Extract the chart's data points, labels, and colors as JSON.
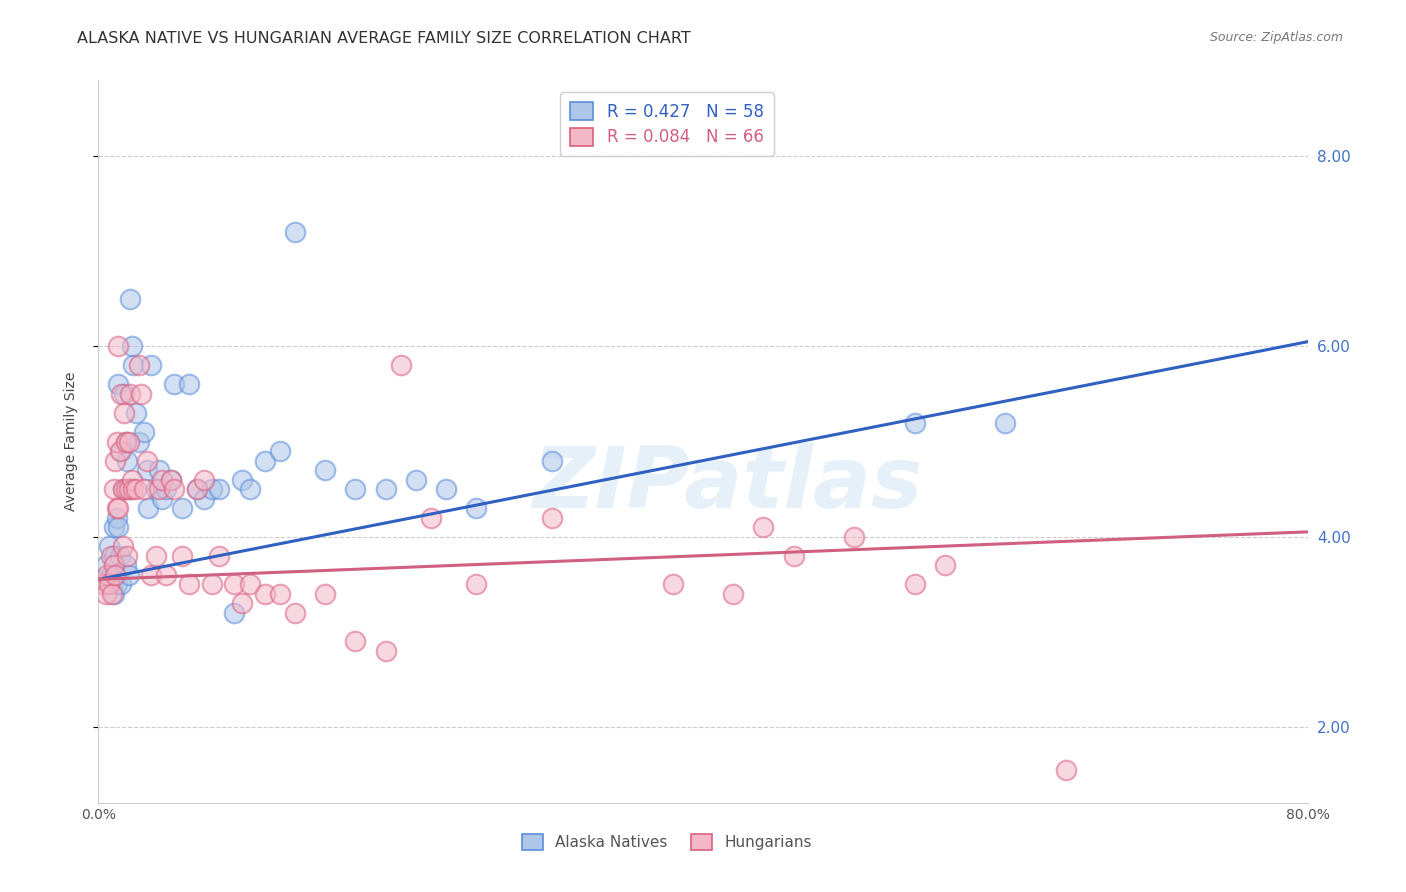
{
  "title": "ALASKA NATIVE VS HUNGARIAN AVERAGE FAMILY SIZE CORRELATION CHART",
  "source": "Source: ZipAtlas.com",
  "ylabel": "Average Family Size",
  "yticks": [
    2.0,
    4.0,
    6.0,
    8.0
  ],
  "xlim": [
    0.0,
    0.8
  ],
  "ylim": [
    1.2,
    8.8
  ],
  "watermark": "ZIPatlas",
  "legend_entries": [
    {
      "label": "R = 0.427   N = 58",
      "facecolor": "#aec6e8",
      "edgecolor": "#5b8dd9"
    },
    {
      "label": "R = 0.084   N = 66",
      "facecolor": "#f4b8c8",
      "edgecolor": "#d9607a"
    }
  ],
  "legend_labels_bottom": [
    "Alaska Natives",
    "Hungarians"
  ],
  "alaska_face": "#aec6e8",
  "alaska_edge": "#5b8dd9",
  "hungarian_face": "#f4b8c8",
  "hungarian_edge": "#d96080",
  "alaska_line_color": "#3060c0",
  "hungarian_line_color": "#d06080",
  "alaska_scatter": {
    "x": [
      0.005,
      0.007,
      0.008,
      0.009,
      0.01,
      0.01,
      0.01,
      0.011,
      0.012,
      0.012,
      0.013,
      0.013,
      0.014,
      0.015,
      0.015,
      0.016,
      0.017,
      0.018,
      0.018,
      0.019,
      0.02,
      0.02,
      0.021,
      0.022,
      0.023,
      0.025,
      0.027,
      0.03,
      0.032,
      0.033,
      0.035,
      0.038,
      0.04,
      0.042,
      0.045,
      0.048,
      0.05,
      0.055,
      0.06,
      0.065,
      0.07,
      0.075,
      0.08,
      0.09,
      0.095,
      0.1,
      0.11,
      0.12,
      0.13,
      0.15,
      0.17,
      0.19,
      0.21,
      0.23,
      0.25,
      0.3,
      0.54,
      0.6
    ],
    "y": [
      3.7,
      3.9,
      3.6,
      3.5,
      4.1,
      3.8,
      3.4,
      3.6,
      4.2,
      3.5,
      5.6,
      4.1,
      3.8,
      4.9,
      3.5,
      4.5,
      5.5,
      5.0,
      3.7,
      4.8,
      3.6,
      4.5,
      6.5,
      6.0,
      5.8,
      5.3,
      5.0,
      5.1,
      4.7,
      4.3,
      5.8,
      4.5,
      4.7,
      4.4,
      4.5,
      4.6,
      5.6,
      4.3,
      5.6,
      4.5,
      4.4,
      4.5,
      4.5,
      3.2,
      4.6,
      4.5,
      4.8,
      4.9,
      7.2,
      4.7,
      4.5,
      4.5,
      4.6,
      4.5,
      4.3,
      4.8,
      5.2,
      5.2
    ]
  },
  "hungarians_scatter": {
    "x": [
      0.003,
      0.005,
      0.006,
      0.007,
      0.008,
      0.009,
      0.01,
      0.01,
      0.011,
      0.011,
      0.012,
      0.012,
      0.013,
      0.013,
      0.014,
      0.015,
      0.016,
      0.016,
      0.017,
      0.018,
      0.018,
      0.019,
      0.02,
      0.02,
      0.021,
      0.022,
      0.023,
      0.025,
      0.027,
      0.028,
      0.03,
      0.032,
      0.035,
      0.038,
      0.04,
      0.042,
      0.045,
      0.048,
      0.05,
      0.055,
      0.06,
      0.065,
      0.07,
      0.075,
      0.08,
      0.09,
      0.095,
      0.1,
      0.11,
      0.12,
      0.13,
      0.15,
      0.17,
      0.19,
      0.2,
      0.22,
      0.25,
      0.3,
      0.38,
      0.42,
      0.44,
      0.46,
      0.5,
      0.54,
      0.56,
      0.64
    ],
    "y": [
      3.5,
      3.4,
      3.6,
      3.5,
      3.8,
      3.4,
      4.5,
      3.7,
      4.8,
      3.6,
      5.0,
      4.3,
      6.0,
      4.3,
      4.9,
      5.5,
      4.5,
      3.9,
      5.3,
      5.0,
      4.5,
      3.8,
      5.0,
      4.5,
      5.5,
      4.6,
      4.5,
      4.5,
      5.8,
      5.5,
      4.5,
      4.8,
      3.6,
      3.8,
      4.5,
      4.6,
      3.6,
      4.6,
      4.5,
      3.8,
      3.5,
      4.5,
      4.6,
      3.5,
      3.8,
      3.5,
      3.3,
      3.5,
      3.4,
      3.4,
      3.2,
      3.4,
      2.9,
      2.8,
      5.8,
      4.2,
      3.5,
      4.2,
      3.5,
      3.4,
      4.1,
      3.8,
      4.0,
      3.5,
      3.7,
      1.55
    ]
  },
  "alaska_line": {
    "x0": 0.0,
    "y0": 3.55,
    "x1": 0.8,
    "y1": 6.05
  },
  "hungarian_line": {
    "x0": 0.0,
    "y0": 3.55,
    "x1": 0.8,
    "y1": 4.05
  },
  "background_color": "#ffffff",
  "grid_color": "#cccccc",
  "title_fontsize": 11.5,
  "axis_label_fontsize": 10,
  "tick_fontsize": 10,
  "right_tick_color": "#4472c4",
  "scatter_size": 200,
  "scatter_alpha": 0.55,
  "scatter_linewidth": 1.5
}
